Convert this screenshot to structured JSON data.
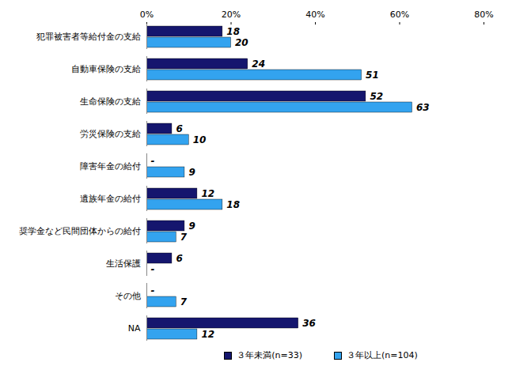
{
  "chart_data": {
    "type": "bar",
    "orientation": "horizontal",
    "categories": [
      "犯罪被害者等給付金の支給",
      "自動車保険の支給",
      "生命保険の支給",
      "労災保険の支給",
      "障害年金の給付",
      "遺族年金の給付",
      "奨学金など民間団体からの給付",
      "生活保護",
      "その他",
      "NA"
    ],
    "series": [
      {
        "name": "３年未満(n=33)",
        "color": "#15166e",
        "values": [
          18,
          24,
          52,
          6,
          0,
          12,
          9,
          6,
          0,
          36
        ],
        "value_labels": [
          "18",
          "24",
          "52",
          "6",
          "-",
          "12",
          "9",
          "6",
          "-",
          "36"
        ]
      },
      {
        "name": "３年以上(n=104)",
        "color": "#33a3ef",
        "values": [
          20,
          51,
          63,
          10,
          9,
          18,
          7,
          0,
          7,
          12
        ],
        "value_labels": [
          "20",
          "51",
          "63",
          "10",
          "9",
          "18",
          "7",
          "-",
          "7",
          "12"
        ]
      }
    ],
    "xlim": [
      0,
      80
    ],
    "xticks": [
      {
        "value": 0,
        "label": "0%"
      },
      {
        "value": 20,
        "label": "20%"
      },
      {
        "value": 40,
        "label": "40%"
      },
      {
        "value": 60,
        "label": "60%"
      },
      {
        "value": 80,
        "label": "80%"
      }
    ],
    "data_labels": true,
    "legend": "bottom",
    "grid": false
  }
}
